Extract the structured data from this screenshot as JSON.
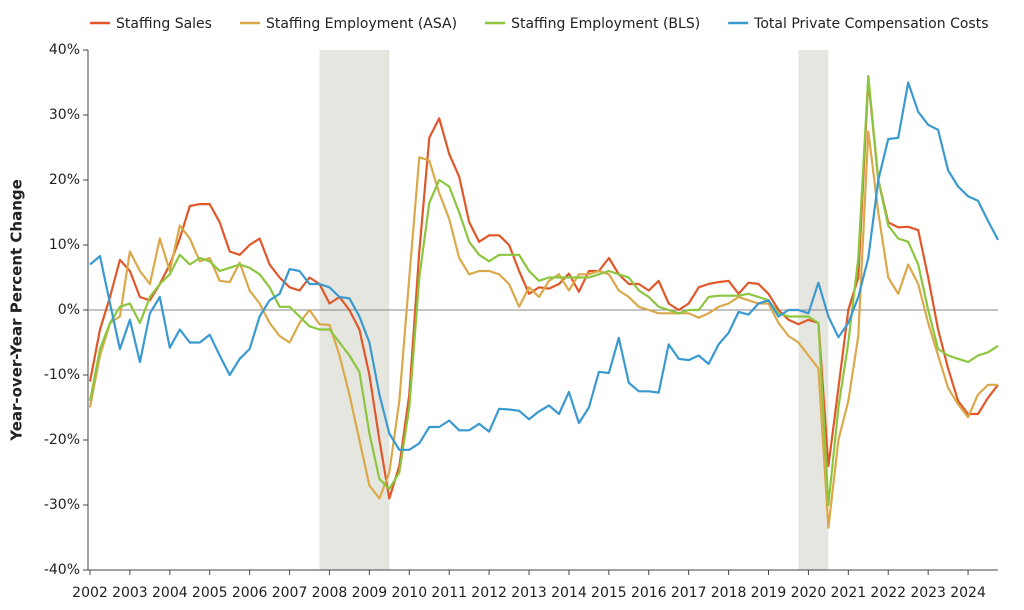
{
  "chart_data": {
    "type": "line",
    "y_label": "Year-over-Year Percent Change",
    "x": [
      2002,
      2002.25,
      2002.5,
      2002.75,
      2003,
      2003.25,
      2003.5,
      2003.75,
      2004,
      2004.25,
      2004.5,
      2004.75,
      2005,
      2005.25,
      2005.5,
      2005.75,
      2006,
      2006.25,
      2006.5,
      2006.75,
      2007,
      2007.25,
      2007.5,
      2007.75,
      2008,
      2008.25,
      2008.5,
      2008.75,
      2009,
      2009.25,
      2009.5,
      2009.75,
      2010,
      2010.25,
      2010.5,
      2010.75,
      2011,
      2011.25,
      2011.5,
      2011.75,
      2012,
      2012.25,
      2012.5,
      2012.75,
      2013,
      2013.25,
      2013.5,
      2013.75,
      2014,
      2014.25,
      2014.5,
      2014.75,
      2015,
      2015.25,
      2015.5,
      2015.75,
      2016,
      2016.25,
      2016.5,
      2016.75,
      2017,
      2017.25,
      2017.5,
      2017.75,
      2018,
      2018.25,
      2018.5,
      2018.75,
      2019,
      2019.25,
      2019.5,
      2019.75,
      2020,
      2020.25,
      2020.5,
      2020.75,
      2021,
      2021.25,
      2021.5,
      2021.75,
      2022,
      2022.25,
      2022.5,
      2022.75,
      2023,
      2023.25,
      2023.5,
      2023.75,
      2024,
      2024.25,
      2024.5,
      2024.75
    ],
    "series": [
      {
        "name": "Staffing Sales",
        "color": "#e0582a",
        "values": [
          -11,
          -3,
          2,
          7.7,
          6,
          2,
          1.5,
          4,
          7,
          11,
          16,
          16.3,
          16.3,
          13.5,
          9,
          8.5,
          10,
          11,
          7,
          5,
          3.5,
          3,
          5,
          4,
          1,
          2,
          0,
          -3,
          -10,
          -20,
          -29,
          -24,
          -13,
          9,
          26.5,
          29.5,
          24,
          20.5,
          13.5,
          10.5,
          11.5,
          11.5,
          10,
          6,
          2.5,
          3.5,
          3.3,
          4,
          5.6,
          2.8,
          6,
          6,
          8,
          5.5,
          4,
          4,
          3,
          4.5,
          1,
          0,
          1,
          3.5,
          4,
          4.3,
          4.5,
          2.5,
          4.2,
          4,
          2.5,
          0,
          -1.5,
          -2.2,
          -1.5,
          -2,
          -24,
          -12,
          0,
          5,
          35.5,
          20,
          13.5,
          12.7,
          12.8,
          12.3,
          5,
          -3,
          -9,
          -14,
          -16,
          -16,
          -13.5,
          -11.5
        ]
      },
      {
        "name": "Staffing Employment (ASA)",
        "color": "#dba84a",
        "values": [
          -15,
          -7,
          -2,
          -1,
          9,
          6,
          4,
          11,
          6,
          13,
          11,
          7.5,
          8,
          4.5,
          4.3,
          7.3,
          3,
          1,
          -2,
          -4,
          -5,
          -2,
          0,
          -2.2,
          -2.3,
          -7,
          -13,
          -20,
          -27,
          -29,
          -25,
          -14,
          5,
          23.5,
          23,
          18,
          14,
          8,
          5.5,
          6,
          6,
          5.5,
          4,
          0.5,
          3.5,
          2,
          4.5,
          5.5,
          3,
          5.5,
          5.5,
          6,
          5.5,
          3,
          2,
          0.5,
          0,
          -0.5,
          -0.5,
          -0.5,
          -0.5,
          -1.2,
          -0.5,
          0.5,
          1,
          2,
          1.5,
          1,
          1,
          -2,
          -4,
          -5,
          -7,
          -9,
          -33.5,
          -20,
          -14,
          -4,
          27.5,
          15,
          5,
          2.5,
          7,
          4,
          -2,
          -7,
          -12,
          -14.5,
          -16.5,
          -13,
          -11.5,
          -11.5
        ]
      },
      {
        "name": "Staffing Employment (BLS)",
        "color": "#8cc63f",
        "values": [
          -14,
          -6,
          -2,
          0.5,
          1,
          -2,
          2,
          4,
          5.5,
          8.5,
          7,
          8,
          7.5,
          6,
          6.5,
          7,
          6.5,
          5.5,
          3.5,
          0.5,
          0.5,
          -1,
          -2.5,
          -3,
          -3,
          -5,
          -7,
          -9.5,
          -19,
          -26,
          -27.5,
          -25,
          -15,
          5,
          16.5,
          20,
          19,
          15,
          10.5,
          8.5,
          7.5,
          8.5,
          8.5,
          8.5,
          6,
          4.5,
          5,
          5,
          5,
          5,
          5,
          5.5,
          6,
          5.5,
          5,
          3,
          2,
          0.5,
          0,
          -0.5,
          0,
          0,
          2,
          2.2,
          2.2,
          2.2,
          2.5,
          2,
          1.5,
          -0.5,
          -1,
          -1,
          -1,
          -2,
          -30,
          -15,
          -5,
          8,
          36,
          20,
          13,
          11,
          10.5,
          7,
          0,
          -6,
          -7,
          -7.5,
          -8,
          -7,
          -6.5,
          -5.5
        ]
      },
      {
        "name": "Total Private Compensation Costs",
        "color": "#3a9ad0",
        "values": [
          7,
          8.3,
          1,
          -6,
          -1.5,
          -8,
          -0.5,
          2,
          -5.8,
          -3,
          -5,
          -5,
          -3.8,
          -7,
          -10,
          -7.5,
          -6,
          -1,
          1.5,
          2.5,
          6.3,
          6,
          4,
          4,
          3.5,
          2,
          1.8,
          -1,
          -5,
          -13,
          -19,
          -21.5,
          -21.5,
          -20.5,
          -18,
          -18,
          -17,
          -18.5,
          -18.5,
          -17.5,
          -18.7,
          -15.2,
          -15.3,
          -15.5,
          -16.8,
          -15.6,
          -14.7,
          -16,
          -12.6,
          -17.4,
          -15,
          -9.5,
          -9.7,
          -4.3,
          -11.2,
          -12.5,
          -12.5,
          -12.7,
          -5.3,
          -7.5,
          -7.7,
          -7,
          -8.3,
          -5.3,
          -3.5,
          -0.3,
          -0.7,
          1,
          1.5,
          -1,
          0,
          0,
          -0.5,
          4.2,
          -1,
          -4.2,
          -2,
          2,
          8,
          20,
          26.3,
          26.5,
          35,
          30.5,
          28.5,
          27.7,
          21.5,
          19,
          17.5,
          16.8,
          13.7,
          10.8
        ]
      }
    ],
    "shaded_periods": [
      {
        "start": 2007.75,
        "end": 2009.5
      },
      {
        "start": 2019.75,
        "end": 2020.5
      }
    ],
    "shade_color": "#e6e6e0",
    "xlim": [
      2002,
      2024.75
    ],
    "xticks": [
      2002,
      2003,
      2004,
      2005,
      2006,
      2007,
      2008,
      2009,
      2010,
      2011,
      2012,
      2013,
      2014,
      2015,
      2016,
      2017,
      2018,
      2019,
      2020,
      2021,
      2022,
      2023,
      2024
    ],
    "ylim": [
      -40,
      40
    ],
    "yticks": [
      {
        "value": -40,
        "label": "-40%"
      },
      {
        "value": -30,
        "label": "-30%"
      },
      {
        "value": -20,
        "label": "-20%"
      },
      {
        "value": -10,
        "label": "-10%"
      },
      {
        "value": 0,
        "label": "0%"
      },
      {
        "value": 10,
        "label": "10%"
      },
      {
        "value": 20,
        "label": "20%"
      },
      {
        "value": 30,
        "label": "30%"
      },
      {
        "value": 40,
        "label": "40%"
      }
    ],
    "grid": false,
    "zero_line": true,
    "legend": "top"
  }
}
